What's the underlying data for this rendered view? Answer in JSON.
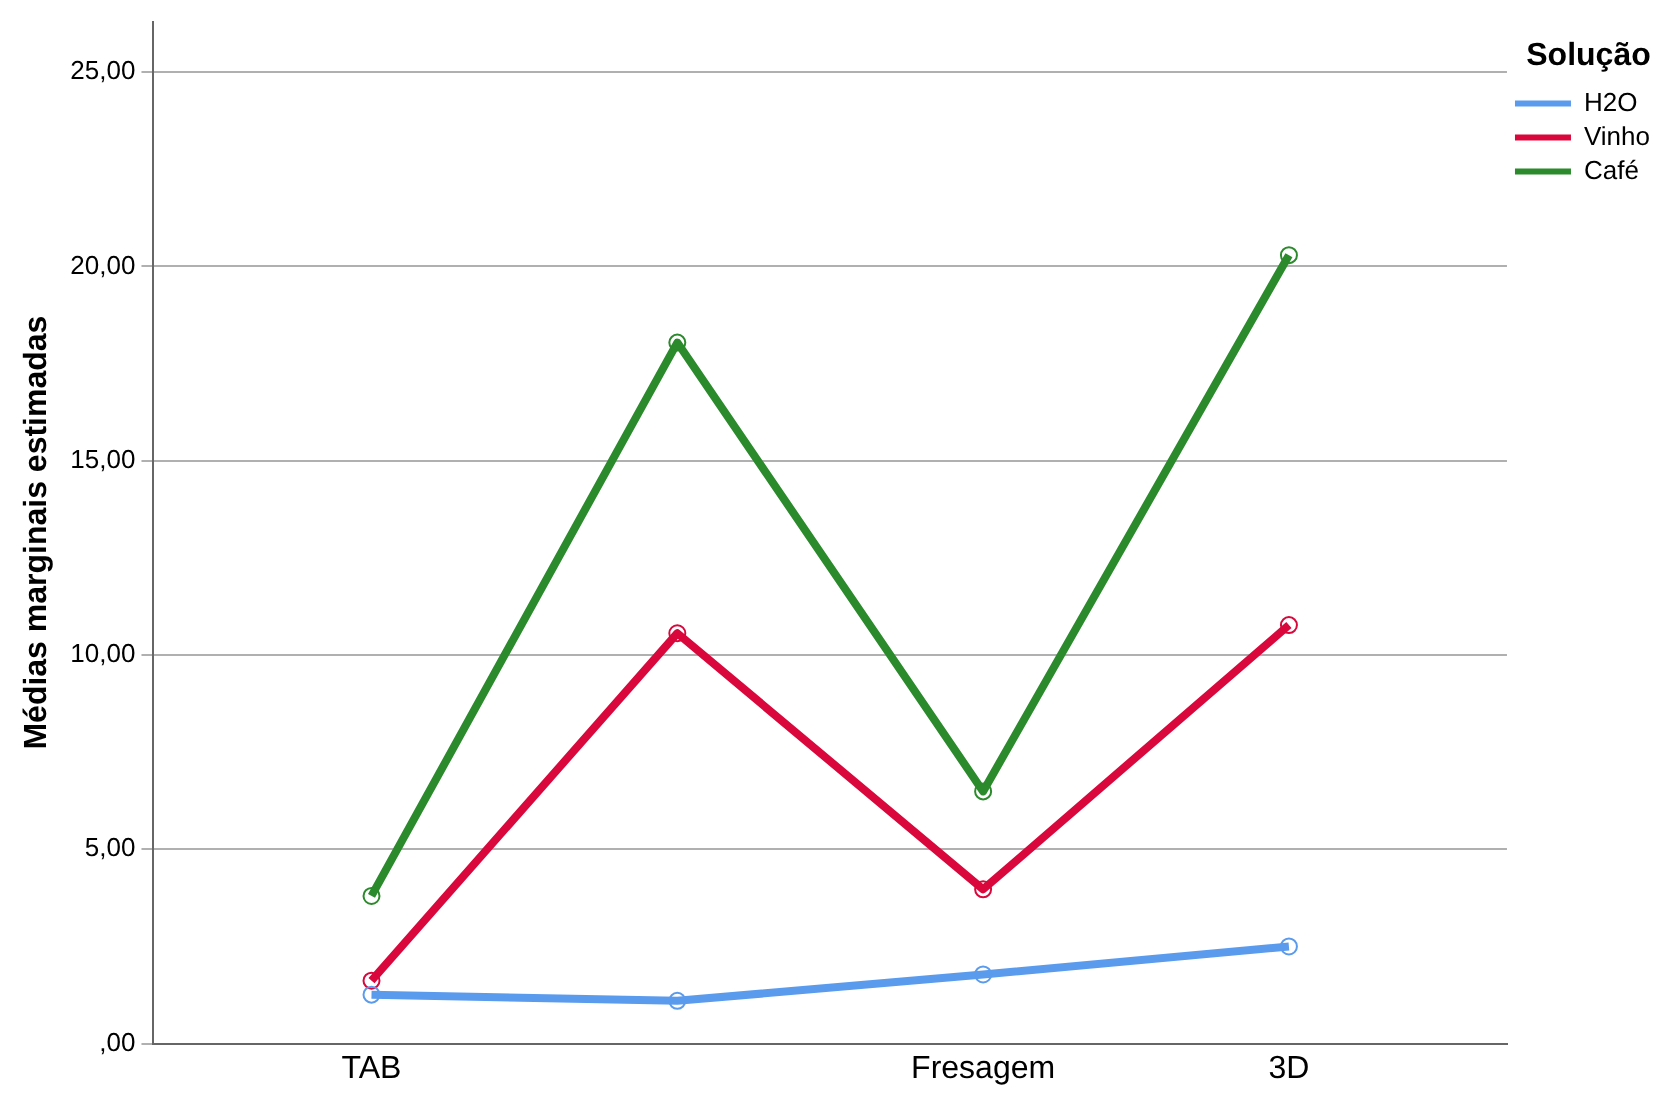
{
  "chart_data": {
    "type": "line",
    "ylabel": "Médias marginais estimadas",
    "legend_title": "Solução",
    "categories": [
      "TAB",
      null,
      "Fresagem",
      "3D"
    ],
    "series": [
      {
        "name": "H2O",
        "color": "#5b9bed",
        "values": [
          1.26,
          1.1,
          1.78,
          2.5
        ]
      },
      {
        "name": "Vinho",
        "color": "#d9073b",
        "values": [
          1.62,
          10.56,
          3.97,
          10.77
        ]
      },
      {
        "name": "Café",
        "color": "#2b8a2b",
        "values": [
          3.8,
          18.04,
          6.49,
          20.29
        ]
      }
    ],
    "ylim": [
      0,
      26.3
    ],
    "yticks": [
      {
        "value": 0,
        "label": ",00"
      },
      {
        "value": 5,
        "label": "5,00"
      },
      {
        "value": 10,
        "label": "10,00"
      },
      {
        "value": 15,
        "label": "15,00"
      },
      {
        "value": 20,
        "label": "20,00"
      },
      {
        "value": 25,
        "label": "25,00"
      }
    ],
    "grid": "y",
    "legend": "top right",
    "marker": "circle",
    "line_style": "solid"
  }
}
